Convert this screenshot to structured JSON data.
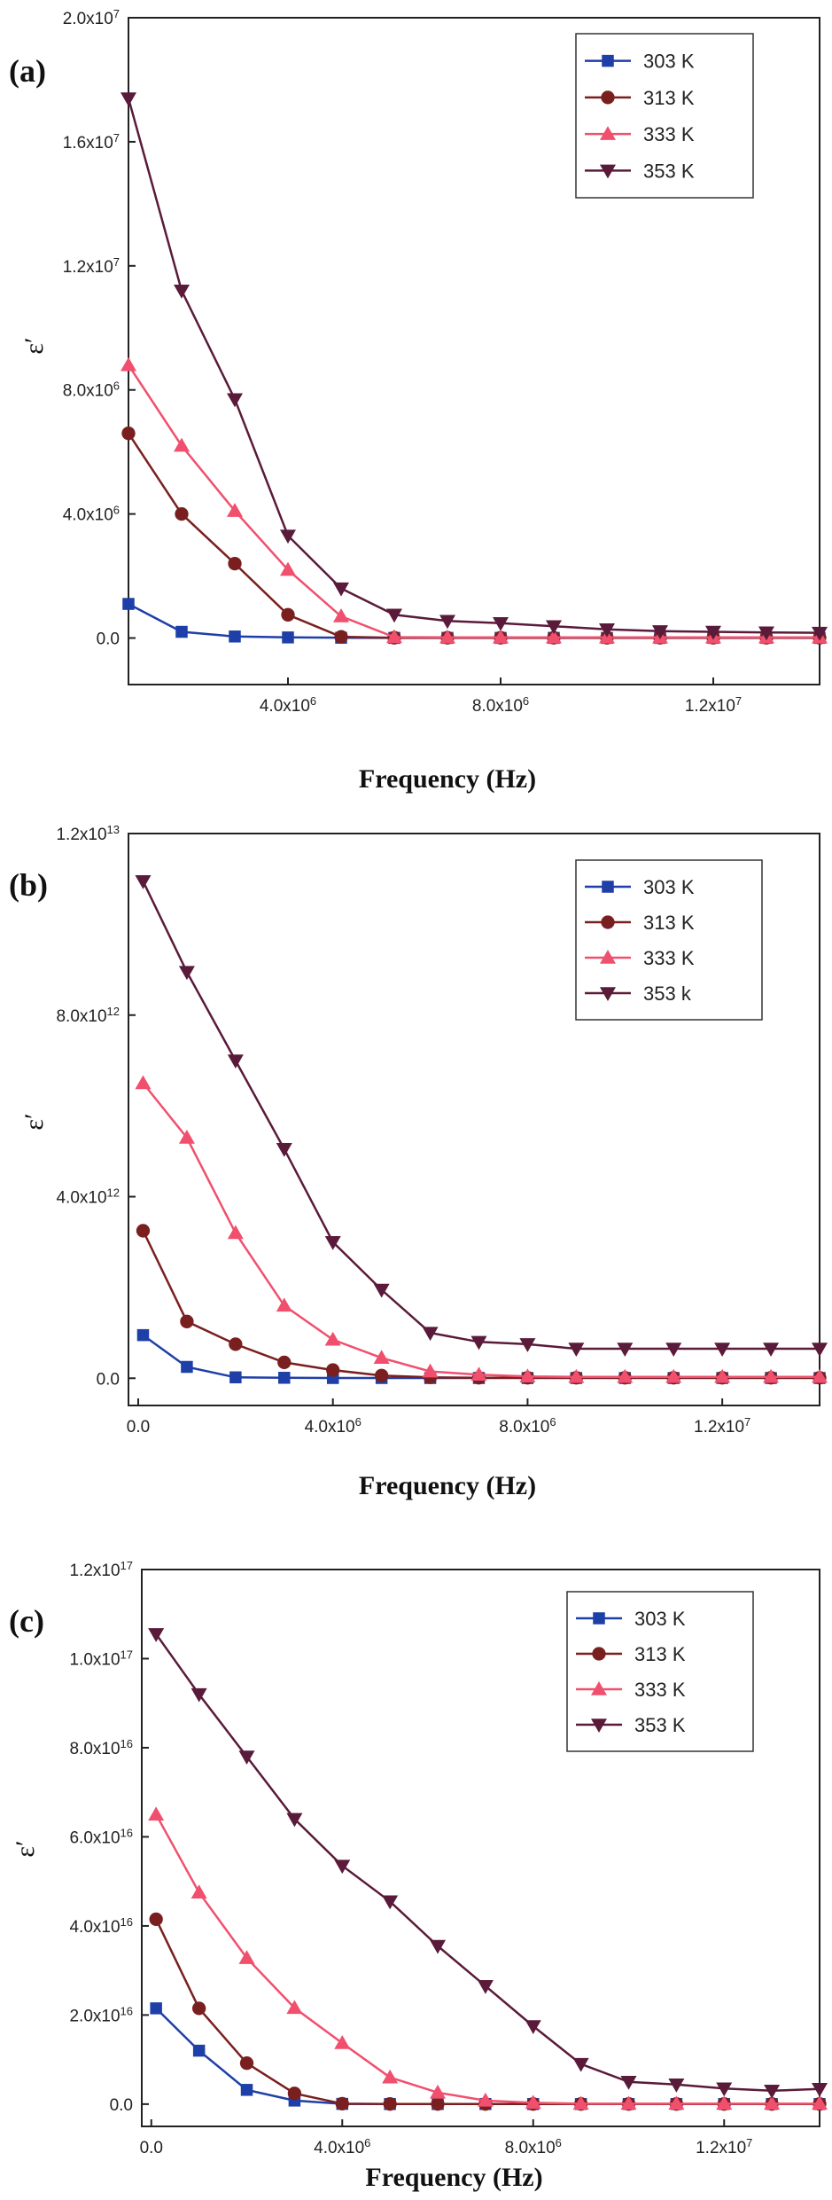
{
  "chart_data": [
    {
      "type": "line",
      "panel": "(a)",
      "xlabel": "Frequency (Hz)",
      "ylabel": "ε′",
      "xlim": [
        1000000,
        14000000
      ],
      "ylim": [
        -1500000,
        20000000
      ],
      "xticks": [
        {
          "value": 4000000,
          "label": "4.0x10^6"
        },
        {
          "value": 8000000,
          "label": "8.0x10^6"
        },
        {
          "value": 12000000,
          "label": "1.2x10^7"
        }
      ],
      "yticks": [
        {
          "value": 0,
          "label": "0.0"
        },
        {
          "value": 4000000,
          "label": "4.0x10^6"
        },
        {
          "value": 8000000,
          "label": "8.0x10^6"
        },
        {
          "value": 12000000,
          "label": "1.2x10^7"
        },
        {
          "value": 16000000,
          "label": "1.6x10^7"
        },
        {
          "value": 20000000,
          "label": "2.0x10^7"
        }
      ],
      "legend_position": "top-right",
      "x": [
        1000000,
        2000000,
        3000000,
        4000000,
        5000000,
        6000000,
        7000000,
        8000000,
        9000000,
        10000000,
        11000000,
        12000000,
        13000000,
        14000000
      ],
      "series": [
        {
          "name": "303 K",
          "color": "#1f3fa8",
          "marker": "square",
          "values": [
            1100000,
            200000,
            50000,
            20000,
            10000,
            5000,
            5000,
            5000,
            5000,
            5000,
            5000,
            5000,
            5000,
            5000
          ]
        },
        {
          "name": "313 K",
          "color": "#7a1f1f",
          "marker": "circle",
          "values": [
            6600000,
            4000000,
            2400000,
            750000,
            40000,
            10000,
            10000,
            10000,
            10000,
            10000,
            10000,
            10000,
            10000,
            10000
          ]
        },
        {
          "name": "333 K",
          "color": "#f0506e",
          "marker": "triangle-up",
          "values": [
            8800000,
            6200000,
            4100000,
            2200000,
            700000,
            30000,
            20000,
            20000,
            20000,
            20000,
            20000,
            20000,
            20000,
            20000
          ]
        },
        {
          "name": "353 K",
          "color": "#5a1a3a",
          "marker": "triangle-down",
          "values": [
            17400000,
            11200000,
            7700000,
            3300000,
            1600000,
            750000,
            550000,
            480000,
            380000,
            280000,
            220000,
            200000,
            180000,
            170000
          ]
        }
      ]
    },
    {
      "type": "line",
      "panel": "(b)",
      "xlabel": "Frequency (Hz)",
      "ylabel": "ε′",
      "xlim": [
        -200000,
        14000000
      ],
      "ylim": [
        -600000000000,
        12000000000000
      ],
      "xticks": [
        {
          "value": 0,
          "label": "0.0"
        },
        {
          "value": 4000000,
          "label": "4.0x10^6"
        },
        {
          "value": 8000000,
          "label": "8.0x10^6"
        },
        {
          "value": 12000000,
          "label": "1.2x10^7"
        }
      ],
      "yticks": [
        {
          "value": 0,
          "label": "0.0"
        },
        {
          "value": 4000000000000,
          "label": "4.0x10^12"
        },
        {
          "value": 8000000000000,
          "label": "8.0x10^12"
        },
        {
          "value": 12000000000000,
          "label": "1.2x10^13"
        }
      ],
      "legend_position": "top-right",
      "x": [
        100000,
        1000000,
        2000000,
        3000000,
        4000000,
        5000000,
        6000000,
        7000000,
        8000000,
        9000000,
        10000000,
        11000000,
        12000000,
        13000000,
        14000000
      ],
      "series": [
        {
          "name": "303 K",
          "color": "#1f3fa8",
          "marker": "square",
          "values": [
            950000000000,
            250000000000,
            20000000000,
            10000000000,
            5000000000,
            5000000000,
            5000000000,
            5000000000,
            5000000000,
            5000000000,
            5000000000,
            5000000000,
            5000000000,
            5000000000,
            5000000000
          ]
        },
        {
          "name": "313 K",
          "color": "#7a1f1f",
          "marker": "circle",
          "values": [
            3250000000000,
            1250000000000,
            750000000000,
            350000000000,
            180000000000,
            60000000000,
            20000000000,
            10000000000,
            10000000000,
            10000000000,
            10000000000,
            10000000000,
            10000000000,
            10000000000,
            10000000000
          ]
        },
        {
          "name": "333 K",
          "color": "#f0506e",
          "marker": "triangle-up",
          "values": [
            6500000000000,
            5300000000000,
            3200000000000,
            1600000000000,
            850000000000,
            450000000000,
            150000000000,
            80000000000,
            40000000000,
            30000000000,
            30000000000,
            30000000000,
            30000000000,
            30000000000,
            30000000000
          ]
        },
        {
          "name": "353 k",
          "color": "#5a1a3a",
          "marker": "triangle-down",
          "values": [
            10950000000000,
            8950000000000,
            7000000000000,
            5050000000000,
            3000000000000,
            1950000000000,
            1000000000000,
            800000000000,
            750000000000,
            650000000000,
            650000000000,
            650000000000,
            650000000000,
            650000000000,
            650000000000
          ]
        }
      ]
    },
    {
      "type": "line",
      "panel": "(c)",
      "xlabel": "Frequency (Hz)",
      "ylabel": "ε′",
      "xlim": [
        -200000,
        14000000
      ],
      "ylim": [
        -5000000000000000,
        120000000000000000
      ],
      "xticks": [
        {
          "value": 0,
          "label": "0.0"
        },
        {
          "value": 4000000,
          "label": "4.0x10^6"
        },
        {
          "value": 8000000,
          "label": "8.0x10^6"
        },
        {
          "value": 12000000,
          "label": "1.2x10^7"
        }
      ],
      "yticks": [
        {
          "value": 0,
          "label": "0.0"
        },
        {
          "value": 20000000000000000,
          "label": "2.0x10^16"
        },
        {
          "value": 40000000000000000,
          "label": "4.0x10^16"
        },
        {
          "value": 60000000000000000,
          "label": "6.0x10^16"
        },
        {
          "value": 80000000000000000,
          "label": "8.0x10^16"
        },
        {
          "value": 100000000000000000,
          "label": "1.0x10^17"
        },
        {
          "value": 120000000000000000,
          "label": "1.2x10^17"
        }
      ],
      "legend_position": "top-right",
      "x": [
        100000,
        1000000,
        2000000,
        3000000,
        4000000,
        5000000,
        6000000,
        7000000,
        8000000,
        9000000,
        10000000,
        11000000,
        12000000,
        13000000,
        14000000
      ],
      "series": [
        {
          "name": "303 K",
          "color": "#1f3fa8",
          "marker": "square",
          "values": [
            21500000000000000,
            12000000000000000,
            3200000000000000,
            800000000000000,
            50000000000000,
            20000000000000,
            20000000000000,
            20000000000000,
            20000000000000,
            20000000000000,
            20000000000000,
            20000000000000,
            20000000000000,
            20000000000000,
            20000000000000
          ]
        },
        {
          "name": "313 K",
          "color": "#7a1f1f",
          "marker": "circle",
          "values": [
            41500000000000000,
            21500000000000000,
            9200000000000000,
            2400000000000000,
            100000000000000,
            40000000000000,
            40000000000000,
            40000000000000,
            40000000000000,
            40000000000000,
            40000000000000,
            40000000000000,
            40000000000000,
            40000000000000,
            40000000000000
          ]
        },
        {
          "name": "333 K",
          "color": "#f0506e",
          "marker": "triangle-up",
          "values": [
            65000000000000000,
            47500000000000000,
            32800000000000000,
            21600000000000000,
            13700000000000000,
            6000000000000000,
            2600000000000000,
            800000000000000,
            300000000000000,
            100000000000000,
            100000000000000,
            100000000000000,
            100000000000000,
            100000000000000,
            100000000000000
          ]
        },
        {
          "name": "353 K",
          "color": "#5a1a3a",
          "marker": "triangle-down",
          "values": [
            105500000000000000,
            92000000000000000,
            78000000000000000,
            64000000000000000,
            53500000000000000,
            45500000000000000,
            35500000000000000,
            26500000000000000,
            17500000000000000,
            9000000000000000,
            5000000000000000,
            4400000000000000,
            3500000000000000,
            3000000000000000,
            3400000000000000
          ]
        }
      ]
    }
  ]
}
